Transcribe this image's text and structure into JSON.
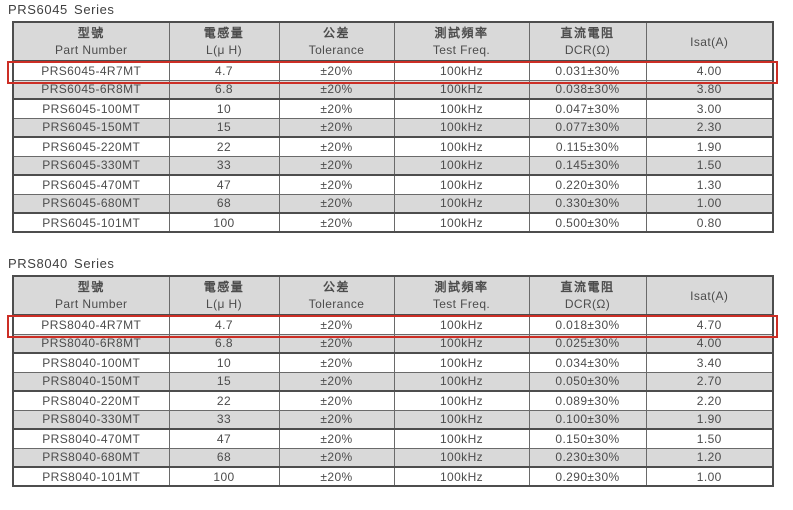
{
  "colors": {
    "header_bg": "#d9d9d9",
    "alt_row_bg": "#d9d9d9",
    "row_bg": "#ffffff",
    "border": "#6a6a6a",
    "outer_border": "#4d4d4d",
    "text": "#4c4c4c",
    "highlight_border": "#cc2e25",
    "page_bg": "#ffffff"
  },
  "tables": [
    {
      "title": "PRS6045 Series",
      "highlighted_row_index": 0,
      "headers": [
        {
          "line1": "型號",
          "line2": "Part Number"
        },
        {
          "line1": "電感量",
          "line2": "L(μ H)"
        },
        {
          "line1": "公差",
          "line2": "Tolerance"
        },
        {
          "line1": "測試頻率",
          "line2": "Test Freq."
        },
        {
          "line1": "直流電阻",
          "line2": "DCR(Ω)"
        },
        {
          "line1": "Isat(A)",
          "line2": ""
        }
      ],
      "rows": [
        [
          "PRS6045-4R7MT",
          "4.7",
          "±20%",
          "100kHz",
          "0.031±30%",
          "4.00"
        ],
        [
          "PRS6045-6R8MT",
          "6.8",
          "±20%",
          "100kHz",
          "0.038±30%",
          "3.80"
        ],
        [
          "PRS6045-100MT",
          "10",
          "±20%",
          "100kHz",
          "0.047±30%",
          "3.00"
        ],
        [
          "PRS6045-150MT",
          "15",
          "±20%",
          "100kHz",
          "0.077±30%",
          "2.30"
        ],
        [
          "PRS6045-220MT",
          "22",
          "±20%",
          "100kHz",
          "0.115±30%",
          "1.90"
        ],
        [
          "PRS6045-330MT",
          "33",
          "±20%",
          "100kHz",
          "0.145±30%",
          "1.50"
        ],
        [
          "PRS6045-470MT",
          "47",
          "±20%",
          "100kHz",
          "0.220±30%",
          "1.30"
        ],
        [
          "PRS6045-680MT",
          "68",
          "±20%",
          "100kHz",
          "0.330±30%",
          "1.00"
        ],
        [
          "PRS6045-101MT",
          "100",
          "±20%",
          "100kHz",
          "0.500±30%",
          "0.80"
        ]
      ]
    },
    {
      "title": "PRS8040 Series",
      "highlighted_row_index": 0,
      "headers": [
        {
          "line1": "型號",
          "line2": "Part Number"
        },
        {
          "line1": "電感量",
          "line2": "L(μ H)"
        },
        {
          "line1": "公差",
          "line2": "Tolerance"
        },
        {
          "line1": "測試頻率",
          "line2": "Test Freq."
        },
        {
          "line1": "直流電阻",
          "line2": "DCR(Ω)"
        },
        {
          "line1": "Isat(A)",
          "line2": ""
        }
      ],
      "rows": [
        [
          "PRS8040-4R7MT",
          "4.7",
          "±20%",
          "100kHz",
          "0.018±30%",
          "4.70"
        ],
        [
          "PRS8040-6R8MT",
          "6.8",
          "±20%",
          "100kHz",
          "0.025±30%",
          "4.00"
        ],
        [
          "PRS8040-100MT",
          "10",
          "±20%",
          "100kHz",
          "0.034±30%",
          "3.40"
        ],
        [
          "PRS8040-150MT",
          "15",
          "±20%",
          "100kHz",
          "0.050±30%",
          "2.70"
        ],
        [
          "PRS8040-220MT",
          "22",
          "±20%",
          "100kHz",
          "0.089±30%",
          "2.20"
        ],
        [
          "PRS8040-330MT",
          "33",
          "±20%",
          "100kHz",
          "0.100±30%",
          "1.90"
        ],
        [
          "PRS8040-470MT",
          "47",
          "±20%",
          "100kHz",
          "0.150±30%",
          "1.50"
        ],
        [
          "PRS8040-680MT",
          "68",
          "±20%",
          "100kHz",
          "0.230±30%",
          "1.20"
        ],
        [
          "PRS8040-101MT",
          "100",
          "±20%",
          "100kHz",
          "0.290±30%",
          "1.00"
        ]
      ]
    }
  ]
}
